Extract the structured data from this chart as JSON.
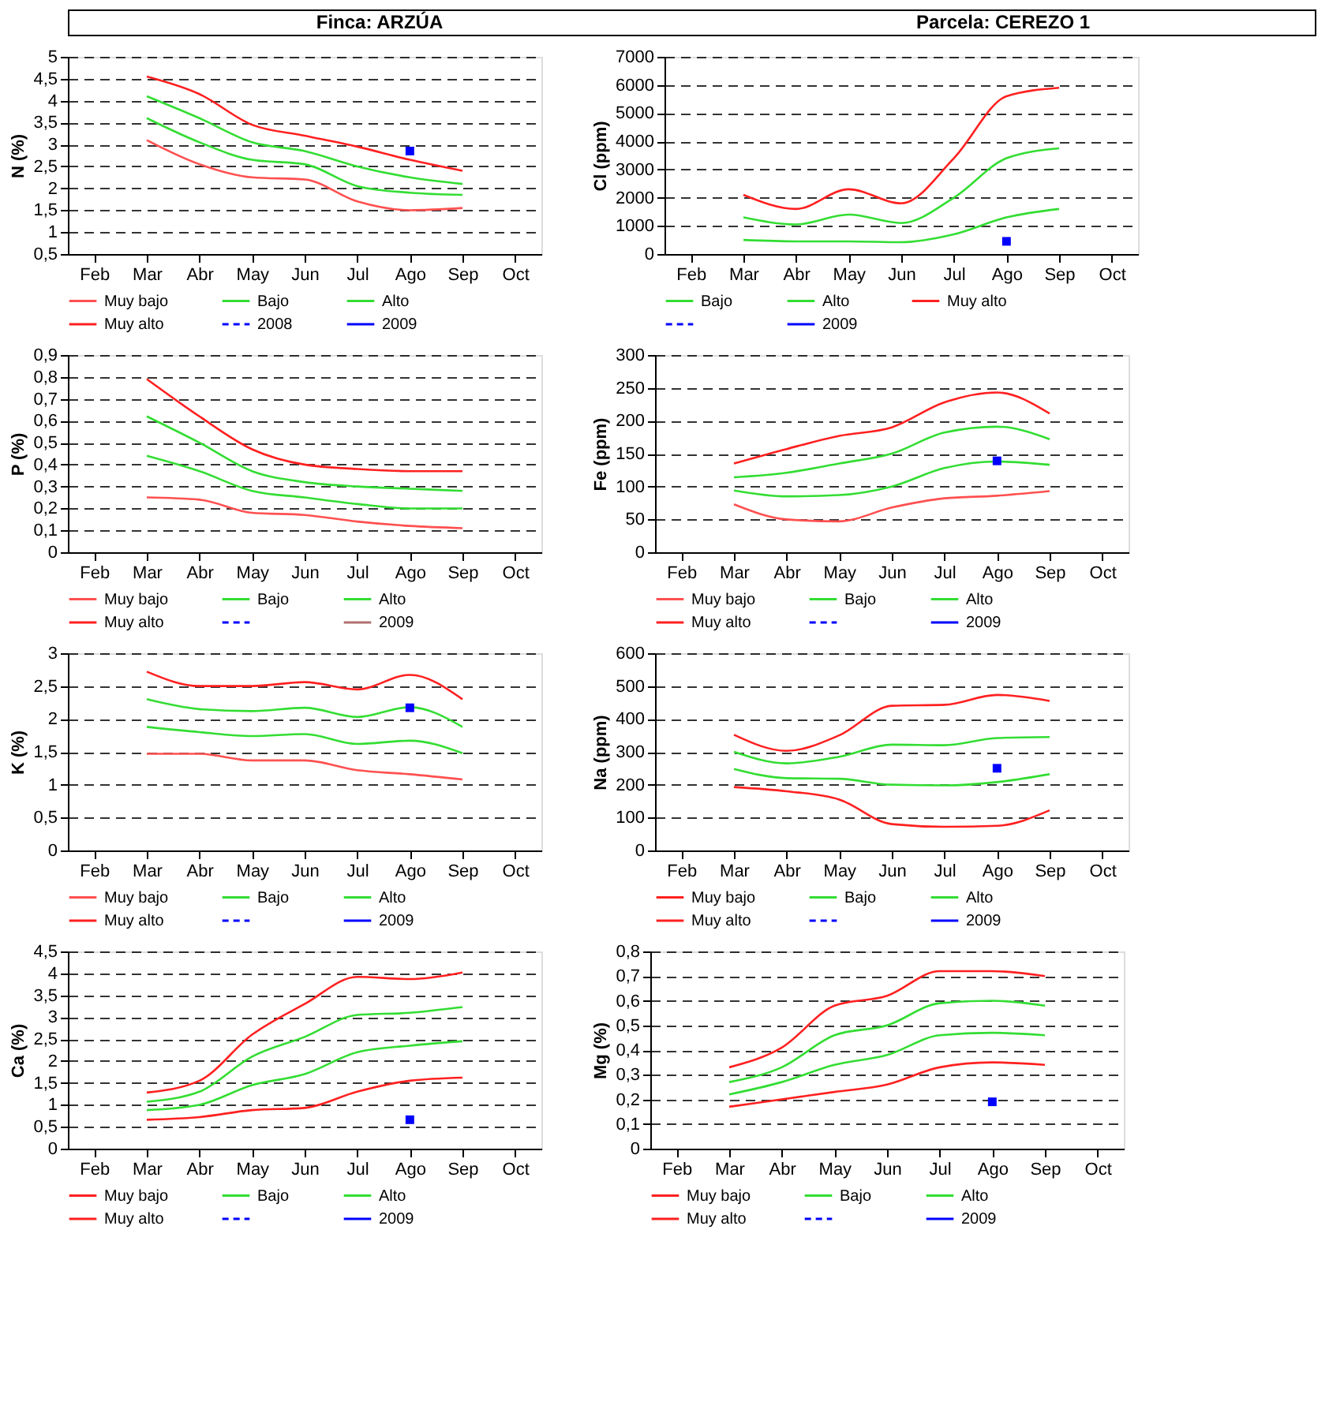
{
  "chart_data": [
    {
      "type": "other",
      "annotations": [
        "Finca: ARZÚA",
        "Parcela: CEREZO 1"
      ]
    },
    {
      "type": "line",
      "ylabel": "N (%)",
      "categories": [
        "Feb",
        "Mar",
        "Abr",
        "May",
        "Jun",
        "Jul",
        "Ago",
        "Sep",
        "Oct"
      ],
      "ylim": [
        0.5,
        5
      ],
      "yticks": [
        {
          "value": 0.5,
          "label": "0,5"
        },
        1,
        {
          "value": 1.5,
          "label": "1,5"
        },
        2,
        {
          "value": 2.5,
          "label": "2,5"
        },
        3,
        {
          "value": 3.5,
          "label": "3,5"
        },
        4,
        {
          "value": 4.5,
          "label": "4,5"
        },
        5
      ],
      "grid": "y",
      "legend": "bottom",
      "series": [
        {
          "name": "Muy bajo",
          "color": "#ff5050",
          "values": [
            null,
            3.1,
            2.55,
            2.25,
            2.2,
            1.7,
            1.5,
            1.55,
            null
          ]
        },
        {
          "name": "Bajo",
          "color": "#33dd33",
          "values": [
            null,
            3.6,
            3.05,
            2.65,
            2.55,
            2.05,
            1.9,
            1.85,
            null
          ]
        },
        {
          "name": "Alto",
          "color": "#33dd33",
          "values": [
            null,
            4.1,
            3.6,
            3.05,
            2.85,
            2.5,
            2.25,
            2.1,
            null
          ]
        },
        {
          "name": "Muy alto",
          "color": "#ff2020",
          "values": [
            null,
            4.55,
            4.15,
            3.45,
            3.2,
            2.95,
            2.65,
            2.4,
            null
          ]
        },
        {
          "name": "2008",
          "color": "#0000ff",
          "line_style": "dashed",
          "values": [
            null,
            null,
            null,
            null,
            null,
            null,
            null,
            null,
            null
          ]
        },
        {
          "name": "2009",
          "color": "#0000ff",
          "type": "scatter",
          "marker": "square",
          "values": [
            null,
            null,
            null,
            null,
            null,
            null,
            2.85,
            null,
            null
          ]
        }
      ]
    },
    {
      "type": "line",
      "ylabel": "Cl (ppm)",
      "categories": [
        "Feb",
        "Mar",
        "Abr",
        "May",
        "Jun",
        "Jul",
        "Ago",
        "Sep",
        "Oct"
      ],
      "ylim": [
        0,
        7000
      ],
      "yticks": [
        0,
        1000,
        2000,
        3000,
        4000,
        5000,
        6000,
        7000
      ],
      "grid": "y",
      "legend": "bottom",
      "series": [
        {
          "name": "Bajo",
          "color": "#33dd33",
          "values": [
            null,
            500,
            450,
            450,
            420,
            700,
            1300,
            1600,
            null
          ]
        },
        {
          "name": "Alto",
          "color": "#33dd33",
          "values": [
            null,
            1300,
            1050,
            1400,
            1100,
            2000,
            3400,
            3750,
            null
          ]
        },
        {
          "name": "Muy alto",
          "color": "#ff2020",
          "values": [
            null,
            2100,
            1600,
            2300,
            1800,
            3400,
            5600,
            5900,
            null
          ]
        },
        {
          "color": "#0000ff",
          "line_style": "dashed",
          "values": [
            null,
            null,
            null,
            null,
            null,
            null,
            null,
            null,
            null
          ]
        },
        {
          "name": "2009",
          "color": "#0000ff",
          "type": "scatter",
          "marker": "square",
          "values": [
            null,
            null,
            null,
            null,
            null,
            null,
            450,
            null,
            null
          ]
        }
      ]
    },
    {
      "type": "line",
      "ylabel": "P (%)",
      "categories": [
        "Feb",
        "Mar",
        "Abr",
        "May",
        "Jun",
        "Jul",
        "Ago",
        "Sep",
        "Oct"
      ],
      "ylim": [
        0,
        0.9
      ],
      "yticks": [
        0,
        {
          "value": 0.1,
          "label": "0,1"
        },
        {
          "value": 0.2,
          "label": "0,2"
        },
        {
          "value": 0.3,
          "label": "0,3"
        },
        {
          "value": 0.4,
          "label": "0,4"
        },
        {
          "value": 0.5,
          "label": "0,5"
        },
        {
          "value": 0.6,
          "label": "0,6"
        },
        {
          "value": 0.7,
          "label": "0,7"
        },
        {
          "value": 0.8,
          "label": "0,8"
        },
        {
          "value": 0.9,
          "label": "0,9"
        }
      ],
      "grid": "y",
      "legend": "bottom",
      "series": [
        {
          "name": "Muy bajo",
          "color": "#ff5050",
          "values": [
            null,
            0.25,
            0.24,
            0.18,
            0.17,
            0.14,
            0.12,
            0.11,
            null
          ]
        },
        {
          "name": "Bajo",
          "color": "#33dd33",
          "values": [
            null,
            0.44,
            0.37,
            0.28,
            0.25,
            0.22,
            0.2,
            0.2,
            null
          ]
        },
        {
          "name": "Alto",
          "color": "#33dd33",
          "values": [
            null,
            0.62,
            0.5,
            0.37,
            0.32,
            0.3,
            0.29,
            0.28,
            null
          ]
        },
        {
          "name": "Muy alto",
          "color": "#ff2020",
          "values": [
            null,
            0.79,
            0.62,
            0.47,
            0.4,
            0.38,
            0.37,
            0.37,
            null
          ]
        },
        {
          "color": "#0000ff",
          "line_style": "dashed",
          "values": [
            null,
            null,
            null,
            null,
            null,
            null,
            null,
            null,
            null
          ]
        },
        {
          "name": "2009",
          "color": "#b07070",
          "values": [
            null,
            null,
            null,
            null,
            null,
            null,
            null,
            null,
            null
          ]
        }
      ]
    },
    {
      "type": "line",
      "ylabel": "Fe (ppm)",
      "categories": [
        "Feb",
        "Mar",
        "Abr",
        "May",
        "Jun",
        "Jul",
        "Ago",
        "Sep",
        "Oct"
      ],
      "ylim": [
        0,
        300
      ],
      "yticks": [
        0,
        50,
        100,
        150,
        200,
        250,
        300
      ],
      "grid": "y",
      "legend": "bottom",
      "series": [
        {
          "name": "Muy bajo",
          "color": "#ff5050",
          "values": [
            null,
            73,
            50,
            47,
            68,
            82,
            86,
            93,
            null
          ]
        },
        {
          "name": "Bajo",
          "color": "#33dd33",
          "values": [
            null,
            94,
            85,
            87,
            100,
            128,
            138,
            133,
            null
          ]
        },
        {
          "name": "Alto",
          "color": "#33dd33",
          "values": [
            null,
            114,
            121,
            135,
            150,
            182,
            191,
            172,
            null
          ]
        },
        {
          "name": "Muy alto",
          "color": "#ff2020",
          "values": [
            null,
            135,
            157,
            177,
            190,
            228,
            243,
            211,
            null
          ]
        },
        {
          "color": "#0000ff",
          "line_style": "dashed",
          "values": [
            null,
            null,
            null,
            null,
            null,
            null,
            null,
            null,
            null
          ]
        },
        {
          "name": "2009",
          "color": "#0000ff",
          "type": "scatter",
          "marker": "square",
          "values": [
            null,
            null,
            null,
            null,
            null,
            null,
            139,
            null,
            null
          ]
        }
      ]
    },
    {
      "type": "line",
      "ylabel": "K (%)",
      "categories": [
        "Feb",
        "Mar",
        "Abr",
        "May",
        "Jun",
        "Jul",
        "Ago",
        "Sep",
        "Oct"
      ],
      "ylim": [
        0,
        3
      ],
      "yticks": [
        0,
        {
          "value": 0.5,
          "label": "0,5"
        },
        1,
        {
          "value": 1.5,
          "label": "1,5"
        },
        2,
        {
          "value": 2.5,
          "label": "2,5"
        },
        3
      ],
      "grid": "y",
      "legend": "bottom",
      "series": [
        {
          "name": "Muy bajo",
          "color": "#ff5050",
          "values": [
            null,
            1.47,
            1.47,
            1.37,
            1.37,
            1.22,
            1.16,
            1.08,
            null
          ]
        },
        {
          "name": "Bajo",
          "color": "#33dd33",
          "values": [
            null,
            1.88,
            1.8,
            1.74,
            1.77,
            1.62,
            1.67,
            1.48,
            null
          ]
        },
        {
          "name": "Alto",
          "color": "#33dd33",
          "values": [
            null,
            2.3,
            2.15,
            2.12,
            2.17,
            2.03,
            2.18,
            1.88,
            null
          ]
        },
        {
          "name": "Muy alto",
          "color": "#ff2020",
          "values": [
            null,
            2.72,
            2.5,
            2.5,
            2.56,
            2.45,
            2.67,
            2.3,
            null
          ]
        },
        {
          "color": "#0000ff",
          "line_style": "dashed",
          "values": [
            null,
            null,
            null,
            null,
            null,
            null,
            null,
            null,
            null
          ]
        },
        {
          "name": "2009",
          "color": "#0000ff",
          "type": "scatter",
          "marker": "square",
          "values": [
            null,
            null,
            null,
            null,
            null,
            null,
            2.17,
            null,
            null
          ]
        }
      ]
    },
    {
      "type": "line",
      "ylabel": "Na (ppm)",
      "categories": [
        "Feb",
        "Mar",
        "Abr",
        "May",
        "Jun",
        "Jul",
        "Ago",
        "Sep",
        "Oct"
      ],
      "ylim": [
        0,
        600
      ],
      "yticks": [
        0,
        100,
        200,
        300,
        400,
        500,
        600
      ],
      "grid": "y",
      "legend": "bottom",
      "series": [
        {
          "name": "Muy bajo",
          "color": "#ff2020",
          "values": [
            null,
            193,
            180,
            155,
            80,
            72,
            75,
            122,
            null
          ]
        },
        {
          "name": "Bajo",
          "color": "#33dd33",
          "values": [
            null,
            248,
            220,
            218,
            200,
            198,
            208,
            232,
            null
          ]
        },
        {
          "name": "Alto",
          "color": "#33dd33",
          "values": [
            null,
            300,
            265,
            285,
            322,
            320,
            342,
            345,
            null
          ]
        },
        {
          "name": "Muy alto",
          "color": "#ff2020",
          "values": [
            null,
            352,
            303,
            350,
            440,
            443,
            473,
            455,
            null
          ]
        },
        {
          "color": "#0000ff",
          "line_style": "dashed",
          "values": [
            null,
            null,
            null,
            null,
            null,
            null,
            null,
            null,
            null
          ]
        },
        {
          "name": "2009",
          "color": "#0000ff",
          "type": "scatter",
          "marker": "square",
          "values": [
            null,
            null,
            null,
            null,
            null,
            null,
            250,
            null,
            null
          ]
        }
      ]
    },
    {
      "type": "line",
      "ylabel": "Ca (%)",
      "categories": [
        "Feb",
        "Mar",
        "Abr",
        "May",
        "Jun",
        "Jul",
        "Ago",
        "Sep",
        "Oct"
      ],
      "ylim": [
        0,
        4.5
      ],
      "yticks": [
        0,
        {
          "value": 0.5,
          "label": "0,5"
        },
        1,
        {
          "value": 1.5,
          "label": "1,5"
        },
        2,
        {
          "value": 2.5,
          "label": "2,5"
        },
        3,
        {
          "value": 3.5,
          "label": "3,5"
        },
        4,
        {
          "value": 4.5,
          "label": "4,5"
        }
      ],
      "grid": "y",
      "legend": "bottom",
      "series": [
        {
          "name": "Muy bajo",
          "color": "#ff2020",
          "values": [
            null,
            0.66,
            0.72,
            0.88,
            0.93,
            1.3,
            1.55,
            1.62,
            null
          ]
        },
        {
          "name": "Bajo",
          "color": "#33dd33",
          "values": [
            null,
            0.88,
            1.0,
            1.45,
            1.7,
            2.2,
            2.35,
            2.45,
            null
          ]
        },
        {
          "name": "Alto",
          "color": "#33dd33",
          "values": [
            null,
            1.07,
            1.3,
            2.1,
            2.55,
            3.05,
            3.1,
            3.23,
            null
          ]
        },
        {
          "name": "Muy alto",
          "color": "#ff2020",
          "values": [
            null,
            1.28,
            1.55,
            2.6,
            3.3,
            3.92,
            3.87,
            4.02,
            null
          ]
        },
        {
          "color": "#0000ff",
          "line_style": "dashed",
          "values": [
            null,
            null,
            null,
            null,
            null,
            null,
            null,
            null,
            null
          ]
        },
        {
          "name": "2009",
          "color": "#0000ff",
          "type": "scatter",
          "marker": "square",
          "values": [
            null,
            null,
            null,
            null,
            null,
            null,
            0.66,
            null,
            null
          ]
        }
      ]
    },
    {
      "type": "line",
      "ylabel": "Mg (%)",
      "categories": [
        "Feb",
        "Mar",
        "Abr",
        "May",
        "Jun",
        "Jul",
        "Ago",
        "Sep",
        "Oct"
      ],
      "ylim": [
        0,
        0.8
      ],
      "yticks": [
        0,
        {
          "value": 0.1,
          "label": "0,1"
        },
        {
          "value": 0.2,
          "label": "0,2"
        },
        {
          "value": 0.3,
          "label": "0,3"
        },
        {
          "value": 0.4,
          "label": "0,4"
        },
        {
          "value": 0.5,
          "label": "0,5"
        },
        {
          "value": 0.6,
          "label": "0,6"
        },
        {
          "value": 0.7,
          "label": "0,7"
        },
        {
          "value": 0.8,
          "label": "0,8"
        }
      ],
      "grid": "y",
      "legend": "bottom",
      "series": [
        {
          "name": "Muy bajo",
          "color": "#ff2020",
          "values": [
            null,
            0.17,
            0.2,
            0.23,
            0.26,
            0.33,
            0.35,
            0.34,
            null
          ]
        },
        {
          "name": "Bajo",
          "color": "#33dd33",
          "values": [
            null,
            0.22,
            0.27,
            0.34,
            0.38,
            0.46,
            0.47,
            0.46,
            null
          ]
        },
        {
          "name": "Alto",
          "color": "#33dd33",
          "values": [
            null,
            0.27,
            0.33,
            0.46,
            0.5,
            0.59,
            0.6,
            0.58,
            null
          ]
        },
        {
          "name": "Muy alto",
          "color": "#ff2020",
          "values": [
            null,
            0.33,
            0.41,
            0.58,
            0.62,
            0.72,
            0.72,
            0.7,
            null
          ]
        },
        {
          "color": "#0000ff",
          "line_style": "dashed",
          "values": [
            null,
            null,
            null,
            null,
            null,
            null,
            null,
            null,
            null
          ]
        },
        {
          "name": "2009",
          "color": "#0000ff",
          "type": "scatter",
          "marker": "square",
          "values": [
            null,
            null,
            null,
            null,
            null,
            null,
            0.19,
            null,
            null
          ]
        }
      ]
    }
  ]
}
